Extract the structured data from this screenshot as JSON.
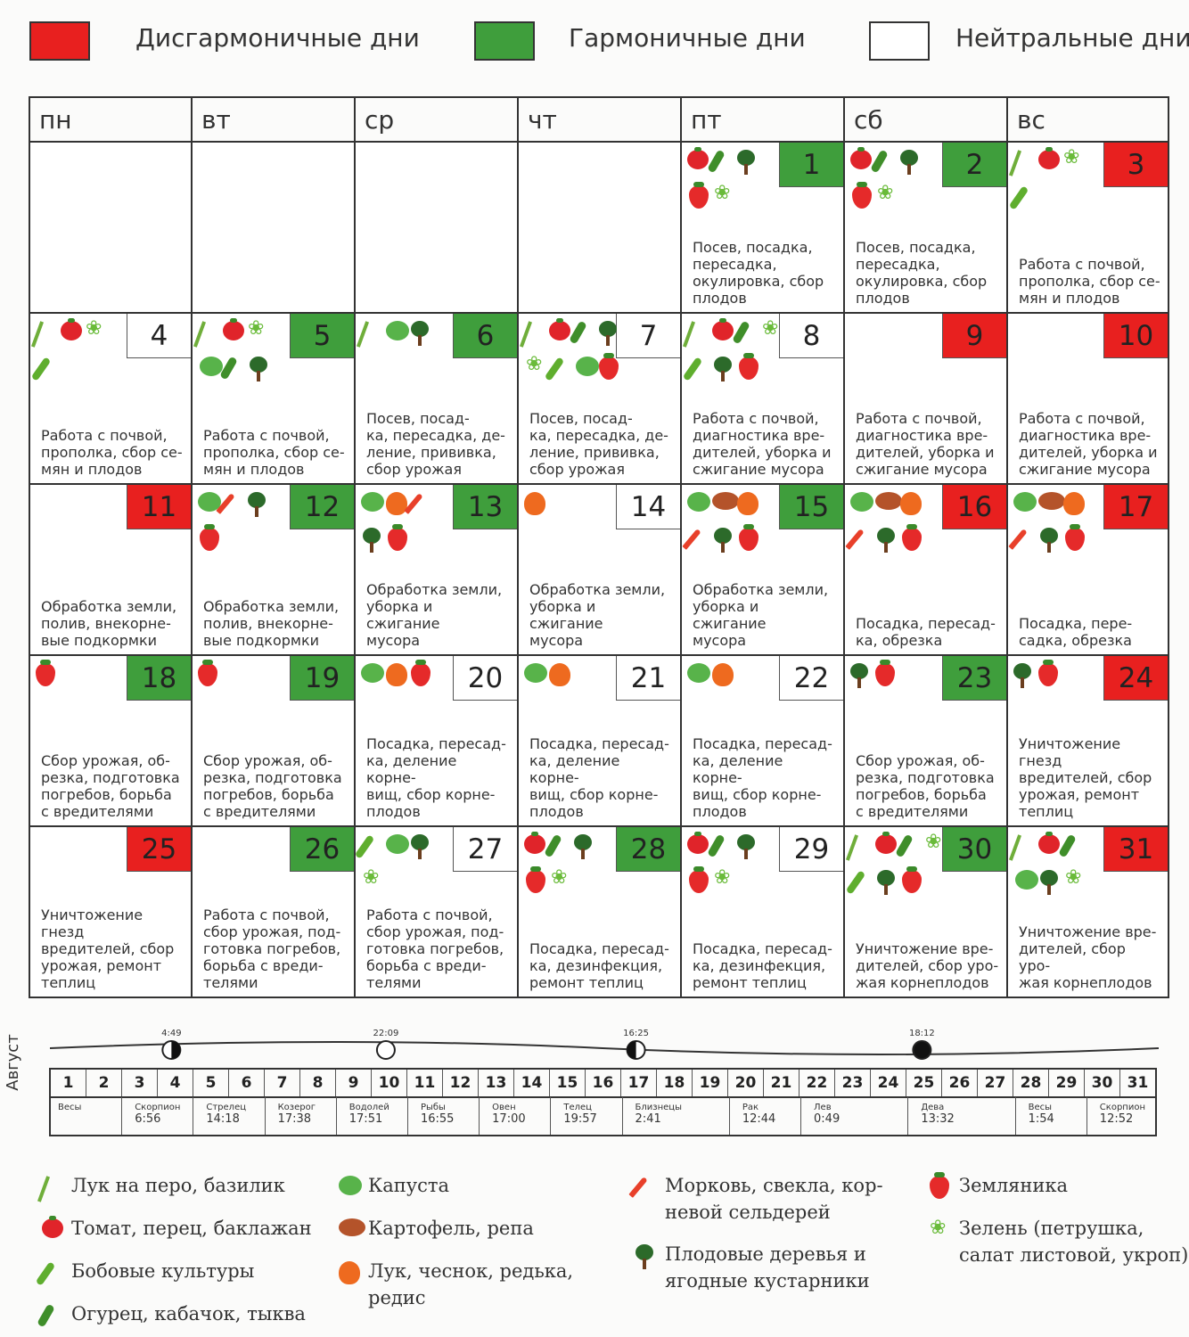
{
  "legend_top": {
    "disharmonic": {
      "label": "Дисгармоничные дни",
      "color": "#e8201f"
    },
    "harmonic": {
      "label": "Гармоничные дни",
      "color": "#3f9e3c"
    },
    "neutral": {
      "label": "Нейтральные дни",
      "color": "#ffffff"
    }
  },
  "weekdays": [
    "пн",
    "вт",
    "ср",
    "чт",
    "пт",
    "сб",
    "вс"
  ],
  "days": [
    {
      "n": "1",
      "type": "green",
      "icons": [
        "tomato",
        "cucumber",
        "tree",
        "straw",
        "greens"
      ],
      "text": "Посев, посадка,\nпересадка,\nокулировка, сбор\nплодов"
    },
    {
      "n": "2",
      "type": "green",
      "icons": [
        "tomato",
        "cucumber",
        "tree",
        "straw",
        "greens"
      ],
      "text": "Посев, посадка,\nпересадка,\nокулировка, сбор\nплодов"
    },
    {
      "n": "3",
      "type": "red",
      "icons": [
        "leek",
        "tomato",
        "greens",
        "pea"
      ],
      "text": "Работа с почвой,\nпрополка, сбор се-\nмян и плодов"
    },
    {
      "n": "4",
      "type": "neutral",
      "icons": [
        "leek",
        "tomato",
        "greens",
        "pea"
      ],
      "text": "Работа с почвой,\nпрополка, сбор се-\nмян и плодов"
    },
    {
      "n": "5",
      "type": "green",
      "icons": [
        "leek",
        "tomato",
        "greens",
        "cabbage",
        "cucumber",
        "tree"
      ],
      "text": "Работа с почвой,\nпрополка, сбор се-\nмян и плодов"
    },
    {
      "n": "6",
      "type": "green",
      "icons": [
        "leek",
        "cabbage",
        "tree"
      ],
      "text": "Посев, посад-\nка, пересадка, де-\nление, прививка,\nсбор урожая"
    },
    {
      "n": "7",
      "type": "neutral",
      "icons": [
        "leek",
        "tomato",
        "cucumber",
        "greens",
        "pea",
        "cabbage",
        "tree",
        "straw"
      ],
      "text": "Посев, посад-\nка, пересадка, де-\nление, прививка,\nсбор урожая"
    },
    {
      "n": "8",
      "type": "neutral",
      "icons": [
        "leek",
        "tomato",
        "cucumber",
        "pea",
        "tree",
        "straw",
        "greens"
      ],
      "text": "Работа с почвой,\nдиагностика вре-\nдителей, уборка и\nсжигание мусора"
    },
    {
      "n": "9",
      "type": "red",
      "icons": [],
      "text": "Работа с почвой,\nдиагностика вре-\nдителей, уборка и\nсжигание мусора"
    },
    {
      "n": "10",
      "type": "red",
      "icons": [],
      "text": "Работа с почвой,\nдиагностика вре-\nдителей, уборка и\nсжигание мусора"
    },
    {
      "n": "11",
      "type": "red",
      "icons": [],
      "text": "Обработка земли,\nполив, внекорне-\nвые подкормки"
    },
    {
      "n": "12",
      "type": "green",
      "icons": [
        "cabbage",
        "carrot",
        "tree",
        "straw"
      ],
      "text": "Обработка земли,\nполив, внекорне-\nвые подкормки"
    },
    {
      "n": "13",
      "type": "green",
      "icons": [
        "cabbage",
        "onion",
        "carrot",
        "tree",
        "straw"
      ],
      "text": "Обработка земли,\nуборка и сжигание\nмусора"
    },
    {
      "n": "14",
      "type": "neutral",
      "icons": [
        "onion"
      ],
      "text": "Обработка земли,\nуборка и сжигание\nмусора"
    },
    {
      "n": "15",
      "type": "green",
      "icons": [
        "cabbage",
        "potato",
        "onion",
        "carrot",
        "tree",
        "straw"
      ],
      "text": "Обработка земли,\nуборка и сжигание\nмусора"
    },
    {
      "n": "16",
      "type": "red",
      "icons": [
        "cabbage",
        "potato",
        "onion",
        "carrot",
        "tree",
        "straw"
      ],
      "text": "Посадка, пересад-\nка, обрезка"
    },
    {
      "n": "17",
      "type": "red",
      "icons": [
        "cabbage",
        "potato",
        "onion",
        "carrot",
        "tree",
        "straw"
      ],
      "text": "Посадка, пере-\nсадка, обрезка"
    },
    {
      "n": "18",
      "type": "green",
      "icons": [
        "straw"
      ],
      "text": "Сбор урожая, об-\nрезка, подготовка\nпогребов, борьба\nс вредителями"
    },
    {
      "n": "19",
      "type": "green",
      "icons": [
        "straw"
      ],
      "text": "Сбор урожая, об-\nрезка, подготовка\nпогребов, борьба\nс вредителями"
    },
    {
      "n": "20",
      "type": "neutral",
      "icons": [
        "cabbage",
        "onion",
        "straw"
      ],
      "text": "Посадка, пересад-\nка, деление корне-\nвищ, сбор корне-\nплодов"
    },
    {
      "n": "21",
      "type": "neutral",
      "icons": [
        "cabbage",
        "onion"
      ],
      "text": "Посадка, пересад-\nка, деление корне-\nвищ, сбор корне-\nплодов"
    },
    {
      "n": "22",
      "type": "neutral",
      "icons": [
        "cabbage",
        "onion"
      ],
      "text": "Посадка, пересад-\nка, деление корне-\nвищ, сбор корне-\nплодов"
    },
    {
      "n": "23",
      "type": "green",
      "icons": [
        "tree",
        "straw"
      ],
      "text": "Сбор урожая, об-\nрезка, подготовка\nпогребов, борьба\nс вредителями"
    },
    {
      "n": "24",
      "type": "red",
      "icons": [
        "tree",
        "straw"
      ],
      "text": "Уничтожение гнезд\nвредителей, сбор\nурожая,  ремонт\nтеплиц"
    },
    {
      "n": "25",
      "type": "red",
      "icons": [],
      "text": "Уничтожение гнезд\nвредителей, сбор\nурожая,  ремонт\nтеплиц"
    },
    {
      "n": "26",
      "type": "green",
      "icons": [],
      "text": "Работа с почвой,\nсбор урожая, под-\nготовка погребов,\nборьба с вреди-\nтелями"
    },
    {
      "n": "27",
      "type": "neutral",
      "icons": [
        "pea",
        "cabbage",
        "tree",
        "greens"
      ],
      "text": "Работа с почвой,\nсбор урожая, под-\nготовка погребов,\nборьба с вреди-\nтелями"
    },
    {
      "n": "28",
      "type": "green",
      "icons": [
        "tomato",
        "cucumber",
        "tree",
        "straw",
        "greens"
      ],
      "text": "Посадка, пересад-\nка, дезинфекция,\nремонт теплиц"
    },
    {
      "n": "29",
      "type": "neutral",
      "icons": [
        "tomato",
        "cucumber",
        "tree",
        "straw",
        "greens"
      ],
      "text": "Посадка, пересад-\nка, дезинфекция,\nремонт теплиц"
    },
    {
      "n": "30",
      "type": "green",
      "icons": [
        "leek",
        "tomato",
        "cucumber",
        "pea",
        "tree",
        "straw",
        "greens"
      ],
      "text": "Уничтожение вре-\nдителей, сбор уро-\nжая  корнеплодов"
    },
    {
      "n": "31",
      "type": "red",
      "icons": [
        "leek",
        "tomato",
        "cucumber",
        "cabbage",
        "tree",
        "greens"
      ],
      "text": "Уничтожение вре-\nдителей, сбор уро-\nжая  корнеплодов"
    }
  ],
  "moon_phases": [
    {
      "time": "4:49",
      "day": 4,
      "phase": "first-quarter"
    },
    {
      "time": "22:09",
      "day": 10,
      "phase": "full-moon"
    },
    {
      "time": "16:25",
      "day": 17,
      "phase": "last-quarter"
    },
    {
      "time": "18:12",
      "day": 25,
      "phase": "new-moon"
    }
  ],
  "month": "Август",
  "date_numbers": [
    "1",
    "2",
    "3",
    "4",
    "5",
    "6",
    "7",
    "8",
    "9",
    "10",
    "11",
    "12",
    "13",
    "14",
    "15",
    "16",
    "17",
    "18",
    "19",
    "20",
    "21",
    "22",
    "23",
    "24",
    "25",
    "26",
    "27",
    "28",
    "29",
    "30",
    "31"
  ],
  "zodiac": [
    {
      "sign": "Весы",
      "time": ""
    },
    {
      "sign": "Скорпион",
      "time": "6:56"
    },
    {
      "sign": "Стрелец",
      "time": "14:18"
    },
    {
      "sign": "Козерог",
      "time": "17:38"
    },
    {
      "sign": "Водолей",
      "time": "17:51"
    },
    {
      "sign": "Рыбы",
      "time": "16:55"
    },
    {
      "sign": "Овен",
      "time": "17:00"
    },
    {
      "sign": "Телец",
      "time": "19:57"
    },
    {
      "sign": "Близнецы",
      "time": "2:41"
    },
    {
      "sign": "Рак",
      "time": "12:44"
    },
    {
      "sign": "Лев",
      "time": "0:49"
    },
    {
      "sign": "Дева",
      "time": "13:32"
    },
    {
      "sign": "Весы",
      "time": "1:54"
    },
    {
      "sign": "Скорпион",
      "time": "12:52"
    }
  ],
  "legend_bottom": [
    {
      "icon": "leek",
      "label": "Лук на перо, базилик"
    },
    {
      "icon": "tomato",
      "label": "Томат, перец, баклажан"
    },
    {
      "icon": "pea",
      "label": "Бобовые культуры"
    },
    {
      "icon": "cucumber",
      "label": "Огурец, кабачок, тыква"
    },
    {
      "icon": "cabbage",
      "label": "Капуста"
    },
    {
      "icon": "potato",
      "label": "Картофель, репа"
    },
    {
      "icon": "onion",
      "label": "Лук, чеснок, редька,\nредис"
    },
    {
      "icon": "carrot",
      "label": "Морковь, свекла, кор-\nневой сельдерей"
    },
    {
      "icon": "tree",
      "label": "Плодовые деревья и\nягодные кустарники"
    },
    {
      "icon": "straw",
      "label": "Земляника"
    },
    {
      "icon": "greens",
      "label": "Зелень (петрушка,\nсалат листовой, укроп)"
    }
  ]
}
